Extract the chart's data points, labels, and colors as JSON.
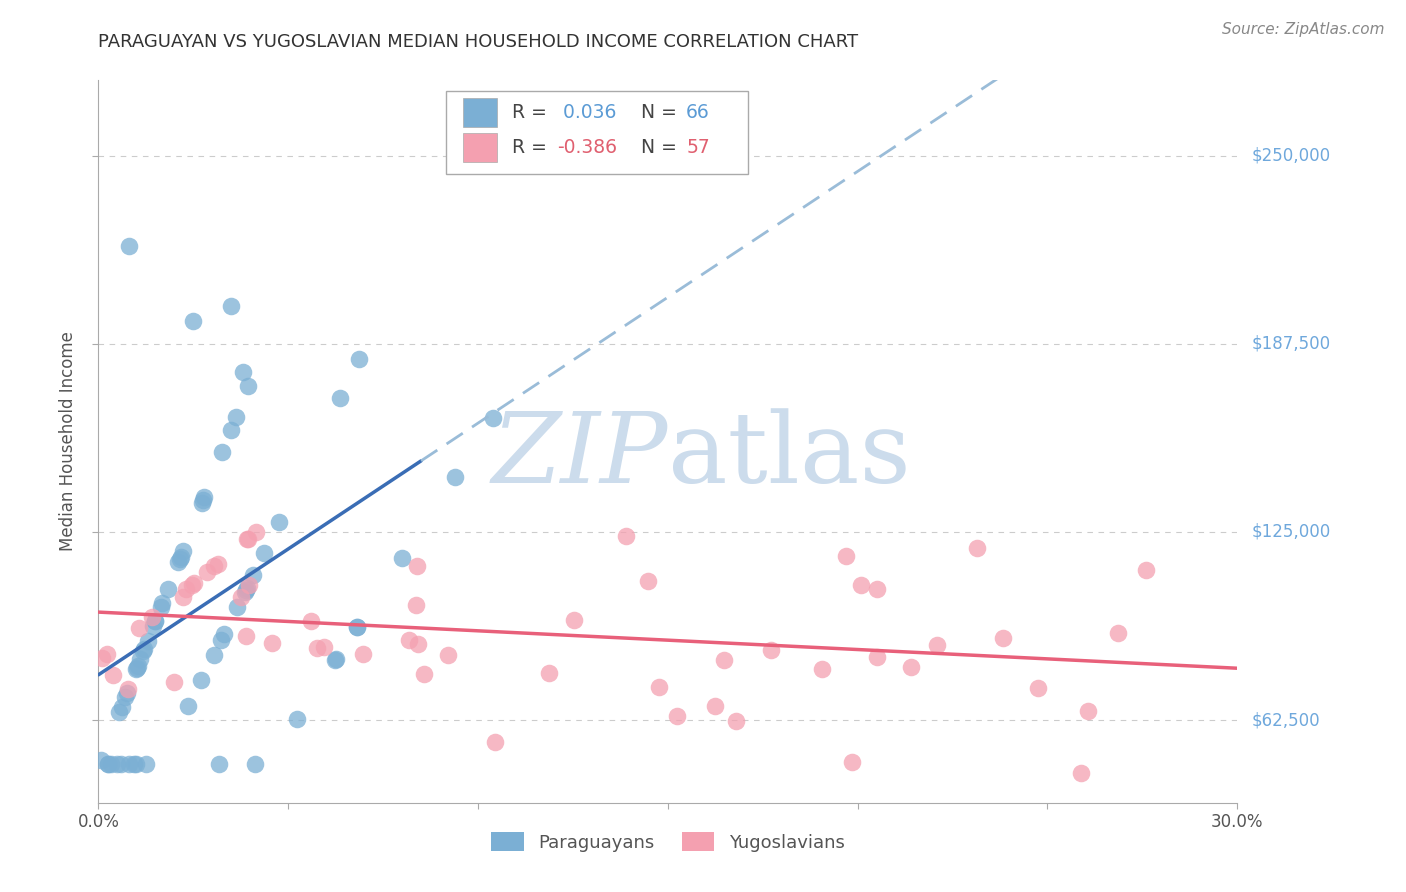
{
  "title": "PARAGUAYAN VS YUGOSLAVIAN MEDIAN HOUSEHOLD INCOME CORRELATION CHART",
  "source_text": "Source: ZipAtlas.com",
  "ylabel": "Median Household Income",
  "ytick_labels": [
    "$62,500",
    "$125,000",
    "$187,500",
    "$250,000"
  ],
  "ytick_values": [
    62500,
    125000,
    187500,
    250000
  ],
  "ymin": 35000,
  "ymax": 275000,
  "xmin": 0.0,
  "xmax": 0.3,
  "paraguayan_R": 0.036,
  "paraguayan_N": 66,
  "yugoslavian_R": -0.386,
  "yugoslavian_N": 57,
  "blue_color": "#7bafd4",
  "pink_color": "#f4a0b0",
  "blue_line_solid_color": "#3a6db5",
  "blue_line_dash_color": "#9abcd8",
  "pink_line_color": "#e8607a",
  "watermark_color": "#ccdcec",
  "title_color": "#333333",
  "ylabel_color": "#555555",
  "tick_label_color_blue": "#6fa8dc",
  "source_color": "#888888",
  "background_color": "#ffffff",
  "grid_color": "#cccccc",
  "legend_r_blue": "#5b9bd5",
  "legend_r_pink": "#e06070",
  "legend_n_blue": "#5b9bd5",
  "legend_n_pink": "#e06070"
}
